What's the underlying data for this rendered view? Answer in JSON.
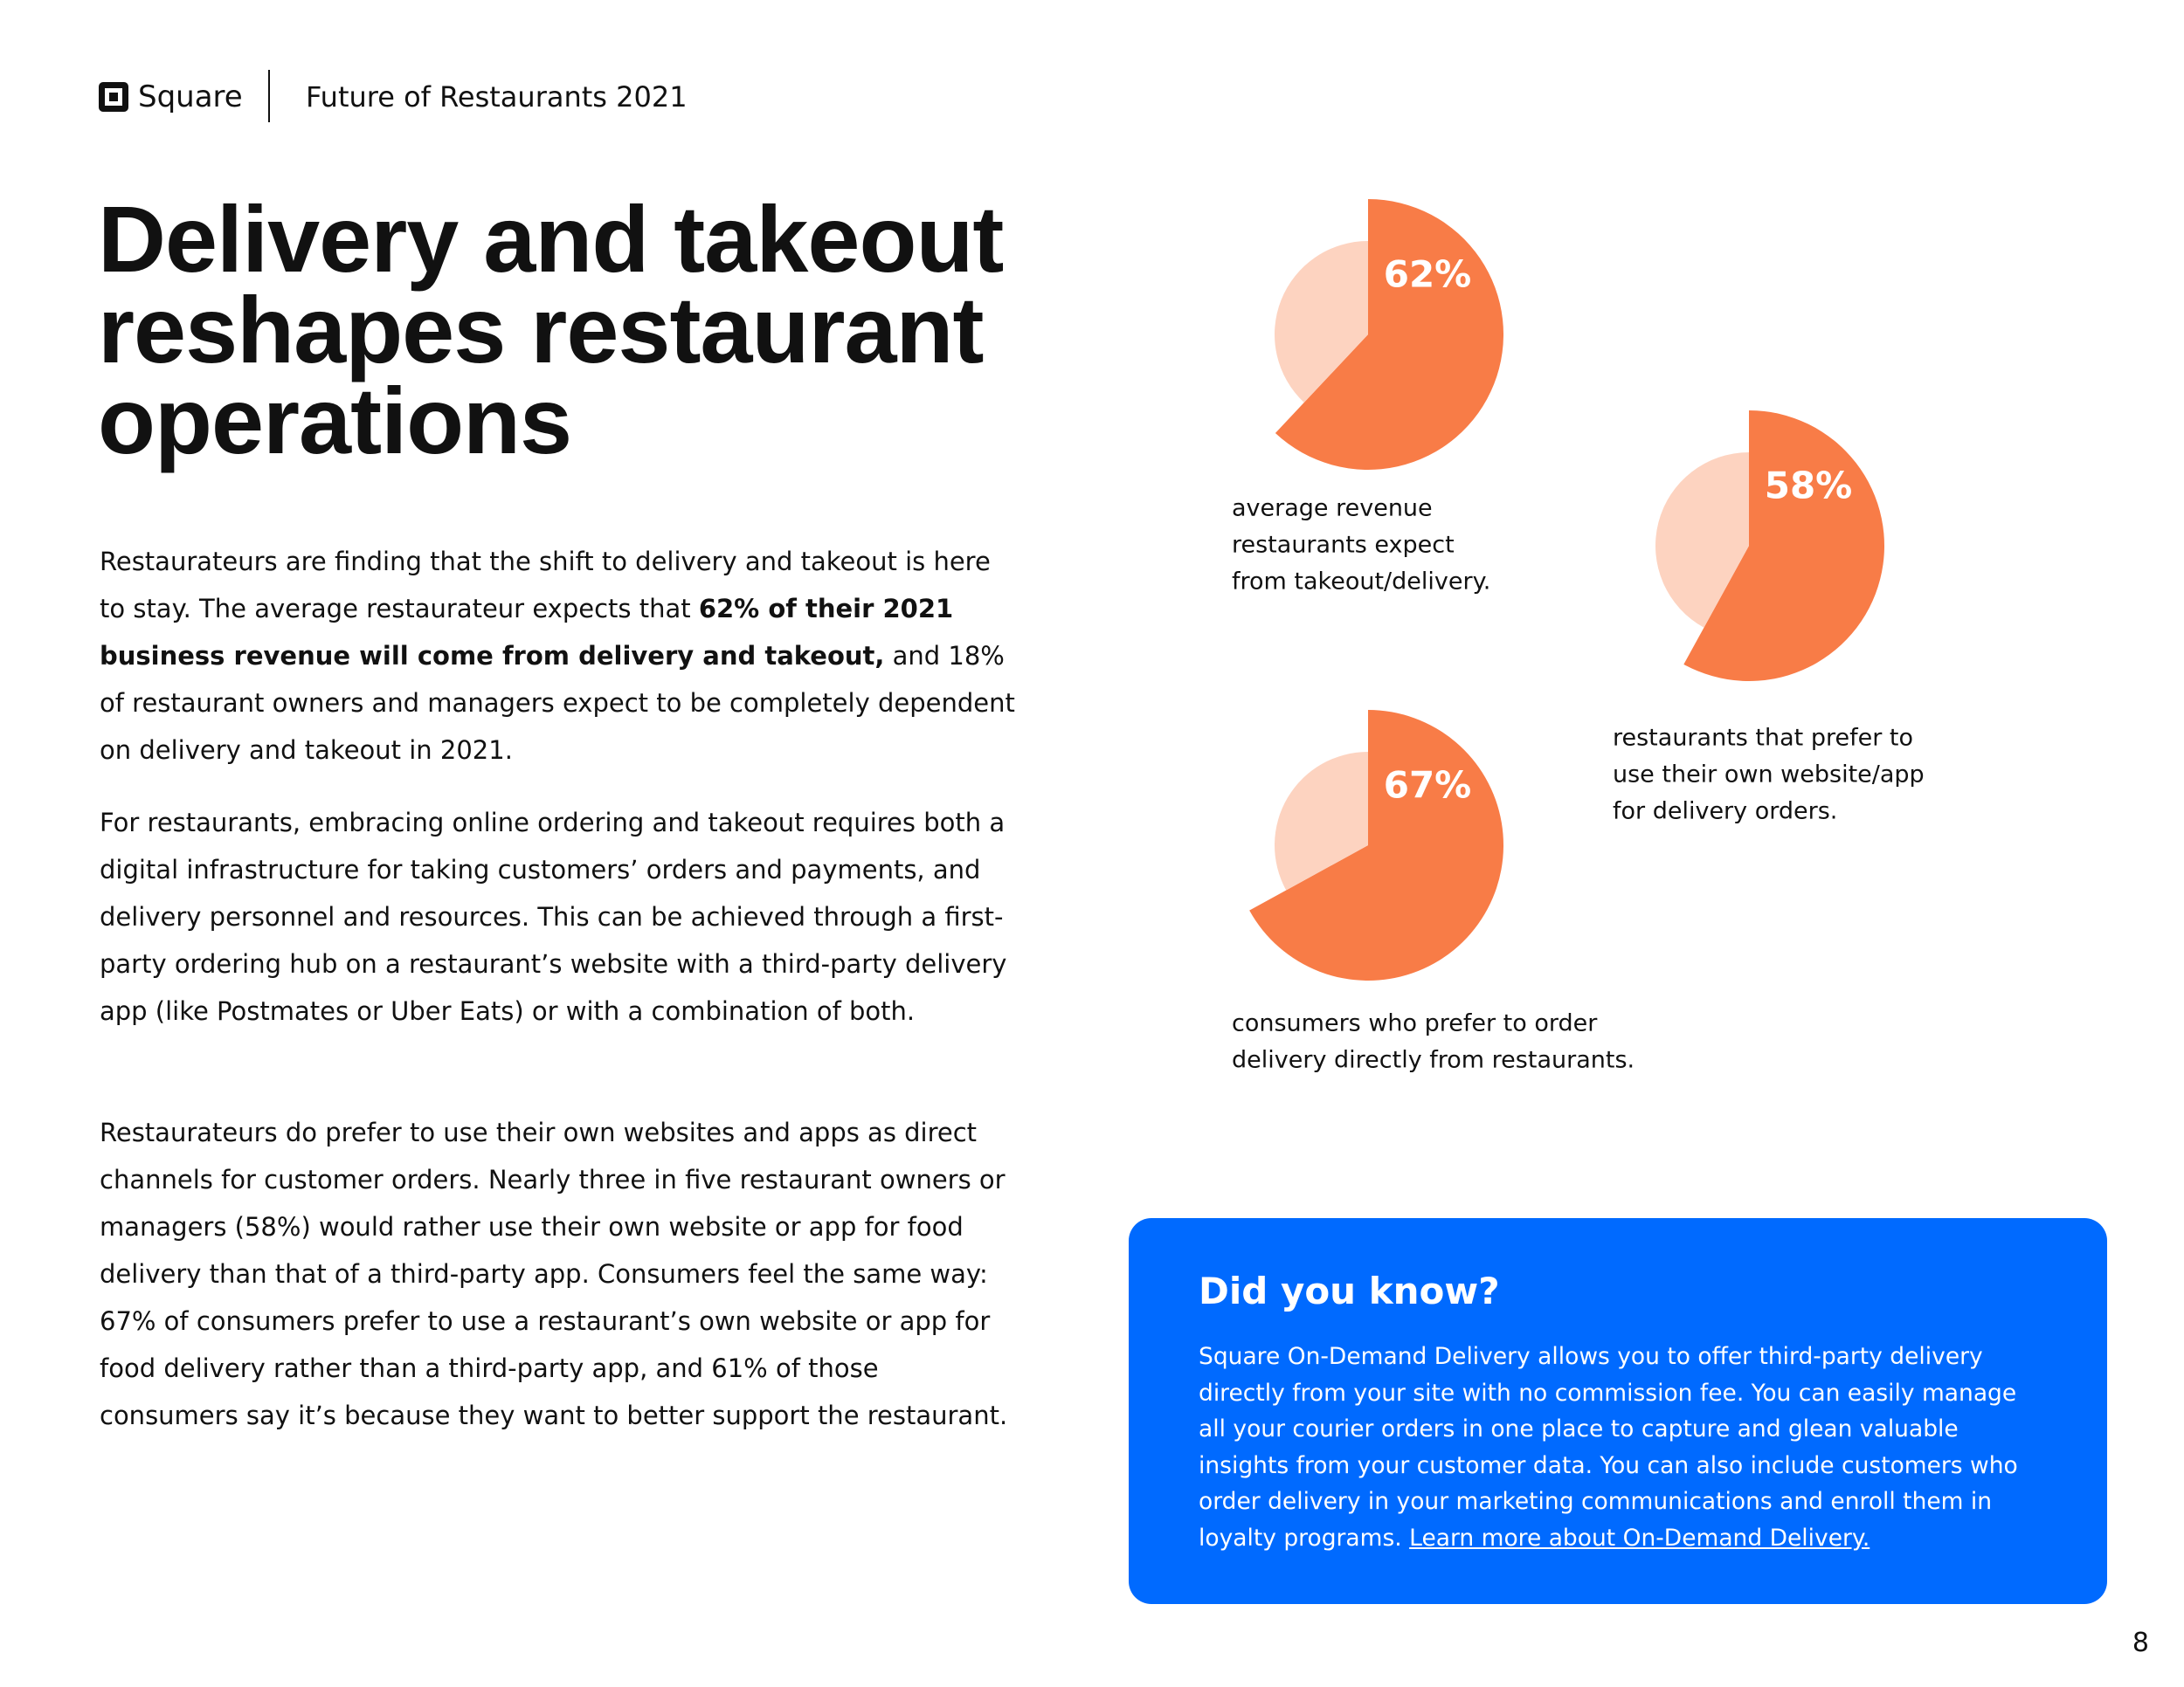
{
  "header": {
    "brand": "Square",
    "title": "Future of Restaurants 2021"
  },
  "title": [
    "Delivery and takeout",
    "reshapes restaurant",
    "operations"
  ],
  "paragraphs": [
    [
      {
        "text": "Restaurateurs are finding that the shift to delivery and takeout is here to stay. The average restaurateur expects that ",
        "bold": false
      },
      {
        "text": "62% of their 2021 business revenue will come from delivery and takeout,",
        "bold": true
      },
      {
        "text": " and 18% of restaurant owners and managers expect to be completely dependent on delivery and takeout in 2021.",
        "bold": false
      }
    ],
    [
      {
        "text": "For restaurants, embracing online ordering and takeout requires both a digital infrastructure for taking customers’ orders and payments, and delivery personnel and resources. This can be achieved through a first-party ordering hub on a restaurant’s website with a third-party delivery app (like Postmates or Uber Eats) or with a combination of both.",
        "bold": false
      }
    ],
    [
      {
        "text": "Restaurateurs do prefer to use their own websites and apps as direct channels for customer orders. Nearly three in five restaurant owners or managers (58%) would rather use their own website or app for food delivery than that of a third-party app. Consumers feel the same way: 67% of consumers prefer to use a restaurant’s own website or app for food delivery rather than a third-party app, and 61% of those consumers say it’s because they want to better support the restaurant.",
        "bold": false
      }
    ]
  ],
  "chart_data": [
    {
      "type": "pie",
      "caption": [
        "average revenue",
        "restaurants expect",
        "from takeout/delivery."
      ],
      "categories": [
        null,
        null
      ],
      "values": [
        62,
        38
      ],
      "value_labels": [
        "62%",
        null
      ],
      "colors": [
        "#f87c47",
        "#fdd3c0"
      ]
    },
    {
      "type": "pie",
      "caption": [
        "restaurants that prefer to",
        "use their own website/app",
        "for delivery orders."
      ],
      "categories": [
        null,
        null
      ],
      "values": [
        58,
        42
      ],
      "value_labels": [
        "58%",
        null
      ],
      "colors": [
        "#f87c47",
        "#fdd3c0"
      ]
    },
    {
      "type": "pie",
      "caption": [
        "consumers who prefer to order",
        "delivery directly from restaurants."
      ],
      "categories": [
        null,
        null
      ],
      "values": [
        67,
        33
      ],
      "value_labels": [
        "67%",
        null
      ],
      "colors": [
        "#f87c47",
        "#fdd3c0"
      ]
    }
  ],
  "callout": {
    "heading": "Did you know?",
    "text": "Square On-Demand Delivery allows you to offer third-party delivery directly from your site with no commission fee. You can easily manage all your courier orders in one place to capture and glean valuable insights from your customer data. You can also include customers who order delivery in your marketing communications and enroll them in loyalty programs. ",
    "link": "Learn more about On-Demand Delivery."
  },
  "page_number": 8
}
